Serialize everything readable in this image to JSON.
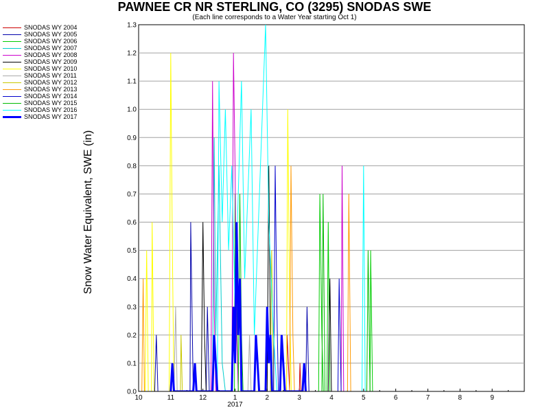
{
  "chart_data": {
    "type": "line",
    "title": "PAWNEE CR NR STERLING, CO (3295) SNODAS SWE",
    "subtitle": "(Each line corresponds to a Water Year starting Oct 1)",
    "ylabel": "Snow Water Equivalent, SWE (in)",
    "xlabel": "",
    "ylim": [
      0,
      1.3
    ],
    "y_ticks": [
      "0.0",
      "0.1",
      "0.2",
      "0.3",
      "0.4",
      "0.5",
      "0.6",
      "0.7",
      "0.8",
      "0.9",
      "1.0",
      "1.1",
      "1.2",
      "1.3"
    ],
    "x_ticks": [
      "10",
      "11",
      "12",
      "1",
      "2",
      "3",
      "4",
      "5",
      "6",
      "7",
      "8",
      "9"
    ],
    "x_year_label": "2017",
    "xlim_months": [
      0,
      12
    ],
    "grid": "horizontal",
    "legend_position": "left",
    "series": [
      {
        "name": "SNODAS WY 2004",
        "color": "#cc0000",
        "width": 1,
        "points": [
          [
            4.6,
            0.0
          ],
          [
            4.62,
            0.2
          ],
          [
            4.66,
            0.1
          ],
          [
            4.7,
            0.0
          ],
          [
            5.0,
            0.0
          ],
          [
            5.02,
            0.1
          ],
          [
            5.05,
            0.0
          ]
        ]
      },
      {
        "name": "SNODAS WY 2005",
        "color": "#0000aa",
        "width": 1,
        "points": [
          [
            0.5,
            0.0
          ],
          [
            0.55,
            0.2
          ],
          [
            0.6,
            0.0
          ],
          [
            1.6,
            0.0
          ],
          [
            1.62,
            0.6
          ],
          [
            1.66,
            0.3
          ],
          [
            1.7,
            0.0
          ],
          [
            2.1,
            0.0
          ],
          [
            2.14,
            0.3
          ],
          [
            2.2,
            0.0
          ],
          [
            5.2,
            0.0
          ],
          [
            5.24,
            0.3
          ],
          [
            5.3,
            0.0
          ]
        ]
      },
      {
        "name": "SNODAS WY 2006",
        "color": "#00cc00",
        "width": 1,
        "points": [
          [
            2.98,
            0.0
          ],
          [
            3.0,
            0.7
          ],
          [
            3.05,
            0.3
          ],
          [
            3.1,
            0.0
          ],
          [
            5.6,
            0.0
          ],
          [
            5.64,
            0.7
          ],
          [
            5.7,
            0.2
          ],
          [
            5.75,
            0.0
          ],
          [
            5.86,
            0.0
          ],
          [
            5.9,
            0.6
          ],
          [
            5.95,
            0.0
          ],
          [
            7.2,
            0.0
          ],
          [
            7.22,
            0.5
          ],
          [
            7.28,
            0.0
          ]
        ]
      },
      {
        "name": "SNODAS WY 2007",
        "color": "#00cccc",
        "width": 1,
        "points": [
          [
            2.3,
            0.0
          ],
          [
            2.35,
            0.9
          ],
          [
            2.4,
            0.2
          ],
          [
            2.5,
            0.8
          ],
          [
            2.6,
            0.1
          ],
          [
            2.7,
            0.0
          ]
        ]
      },
      {
        "name": "SNODAS WY 2008",
        "color": "#cc00cc",
        "width": 1,
        "points": [
          [
            2.25,
            0.0
          ],
          [
            2.3,
            1.1
          ],
          [
            2.35,
            0.3
          ],
          [
            2.4,
            0.0
          ],
          [
            2.9,
            0.0
          ],
          [
            2.95,
            1.2
          ],
          [
            3.0,
            0.8
          ],
          [
            3.05,
            0.2
          ],
          [
            3.1,
            0.0
          ],
          [
            6.3,
            0.0
          ],
          [
            6.33,
            0.8
          ],
          [
            6.38,
            0.0
          ]
        ]
      },
      {
        "name": "SNODAS WY 2009",
        "color": "#000000",
        "width": 1,
        "points": [
          [
            1.95,
            0.0
          ],
          [
            2.0,
            0.6
          ],
          [
            2.05,
            0.2
          ],
          [
            2.1,
            0.0
          ],
          [
            4.0,
            0.0
          ],
          [
            4.05,
            0.8
          ],
          [
            4.1,
            0.2
          ],
          [
            4.15,
            0.0
          ],
          [
            5.9,
            0.0
          ],
          [
            5.95,
            0.4
          ],
          [
            6.0,
            0.0
          ]
        ]
      },
      {
        "name": "SNODAS WY 2010",
        "color": "#ffff00",
        "width": 1,
        "points": [
          [
            0.2,
            0.0
          ],
          [
            0.25,
            0.5
          ],
          [
            0.3,
            0.0
          ],
          [
            0.4,
            0.0
          ],
          [
            0.42,
            0.6
          ],
          [
            0.48,
            0.0
          ],
          [
            0.95,
            0.0
          ],
          [
            1.0,
            1.2
          ],
          [
            1.05,
            0.5
          ],
          [
            1.1,
            0.0
          ],
          [
            4.6,
            0.0
          ],
          [
            4.64,
            1.0
          ],
          [
            4.7,
            0.3
          ],
          [
            4.75,
            0.0
          ]
        ]
      },
      {
        "name": "SNODAS WY 2011",
        "color": "#aaaaaa",
        "width": 1,
        "points": [
          [
            1.1,
            0.0
          ],
          [
            1.15,
            0.3
          ],
          [
            1.2,
            0.0
          ],
          [
            3.4,
            0.0
          ],
          [
            3.45,
            0.2
          ],
          [
            3.5,
            0.0
          ]
        ]
      },
      {
        "name": "SNODAS WY 2012",
        "color": "#c8c800",
        "width": 1,
        "points": [
          [
            1.3,
            0.0
          ],
          [
            1.32,
            0.2
          ],
          [
            1.36,
            0.0
          ],
          [
            4.1,
            0.0
          ],
          [
            4.14,
            0.5
          ],
          [
            4.2,
            0.0
          ]
        ]
      },
      {
        "name": "SNODAS WY 2013",
        "color": "#ff9900",
        "width": 1,
        "points": [
          [
            0.1,
            0.0
          ],
          [
            0.14,
            0.4
          ],
          [
            0.18,
            0.0
          ],
          [
            4.7,
            0.0
          ],
          [
            4.74,
            0.8
          ],
          [
            4.8,
            0.2
          ],
          [
            4.85,
            0.0
          ],
          [
            6.5,
            0.0
          ],
          [
            6.54,
            0.7
          ],
          [
            6.6,
            0.0
          ]
        ]
      },
      {
        "name": "SNODAS WY 2014",
        "color": "#0000cc",
        "width": 1,
        "points": [
          [
            4.2,
            0.0
          ],
          [
            4.25,
            0.8
          ],
          [
            4.3,
            0.3
          ],
          [
            4.35,
            0.0
          ],
          [
            6.2,
            0.0
          ],
          [
            6.24,
            0.4
          ],
          [
            6.3,
            0.0
          ]
        ]
      },
      {
        "name": "SNODAS WY 2015",
        "color": "#00bb00",
        "width": 1,
        "points": [
          [
            3.1,
            0.0
          ],
          [
            3.15,
            0.7
          ],
          [
            3.2,
            0.2
          ],
          [
            3.25,
            0.0
          ],
          [
            5.7,
            0.0
          ],
          [
            5.74,
            0.7
          ],
          [
            5.8,
            0.0
          ],
          [
            7.1,
            0.0
          ],
          [
            7.14,
            0.5
          ],
          [
            7.2,
            0.0
          ]
        ]
      },
      {
        "name": "SNODAS WY 2016",
        "color": "#00ffff",
        "width": 1,
        "points": [
          [
            2.45,
            0.0
          ],
          [
            2.5,
            1.1
          ],
          [
            2.6,
            0.6
          ],
          [
            2.7,
            1.0
          ],
          [
            2.8,
            0.5
          ],
          [
            2.9,
            0.8
          ],
          [
            3.0,
            0.3
          ],
          [
            3.2,
            1.1
          ],
          [
            3.3,
            0.4
          ],
          [
            3.5,
            1.0
          ],
          [
            3.6,
            0.2
          ],
          [
            3.95,
            1.3
          ],
          [
            4.05,
            0.6
          ],
          [
            4.2,
            0.2
          ],
          [
            4.3,
            0.0
          ],
          [
            6.95,
            0.0
          ],
          [
            7.0,
            0.8
          ],
          [
            7.05,
            0.0
          ]
        ]
      },
      {
        "name": "SNODAS WY 2017",
        "color": "#0000ff",
        "width": 3,
        "points": [
          [
            1.0,
            0.0
          ],
          [
            1.05,
            0.1
          ],
          [
            1.1,
            0.0
          ],
          [
            1.7,
            0.0
          ],
          [
            1.75,
            0.1
          ],
          [
            1.8,
            0.0
          ],
          [
            2.3,
            0.0
          ],
          [
            2.35,
            0.2
          ],
          [
            2.4,
            0.1
          ],
          [
            2.45,
            0.0
          ],
          [
            2.9,
            0.0
          ],
          [
            2.95,
            0.3
          ],
          [
            3.0,
            0.1
          ],
          [
            3.05,
            0.6
          ],
          [
            3.1,
            0.2
          ],
          [
            3.15,
            0.4
          ],
          [
            3.2,
            0.0
          ],
          [
            3.6,
            0.0
          ],
          [
            3.65,
            0.2
          ],
          [
            3.7,
            0.1
          ],
          [
            3.75,
            0.0
          ],
          [
            3.95,
            0.0
          ],
          [
            4.0,
            0.3
          ],
          [
            4.05,
            0.1
          ],
          [
            4.1,
            0.2
          ],
          [
            4.15,
            0.0
          ],
          [
            4.4,
            0.0
          ],
          [
            4.45,
            0.2
          ],
          [
            4.5,
            0.1
          ],
          [
            4.55,
            0.0
          ],
          [
            5.1,
            0.0
          ],
          [
            5.15,
            0.1
          ],
          [
            5.2,
            0.0
          ]
        ]
      }
    ]
  }
}
